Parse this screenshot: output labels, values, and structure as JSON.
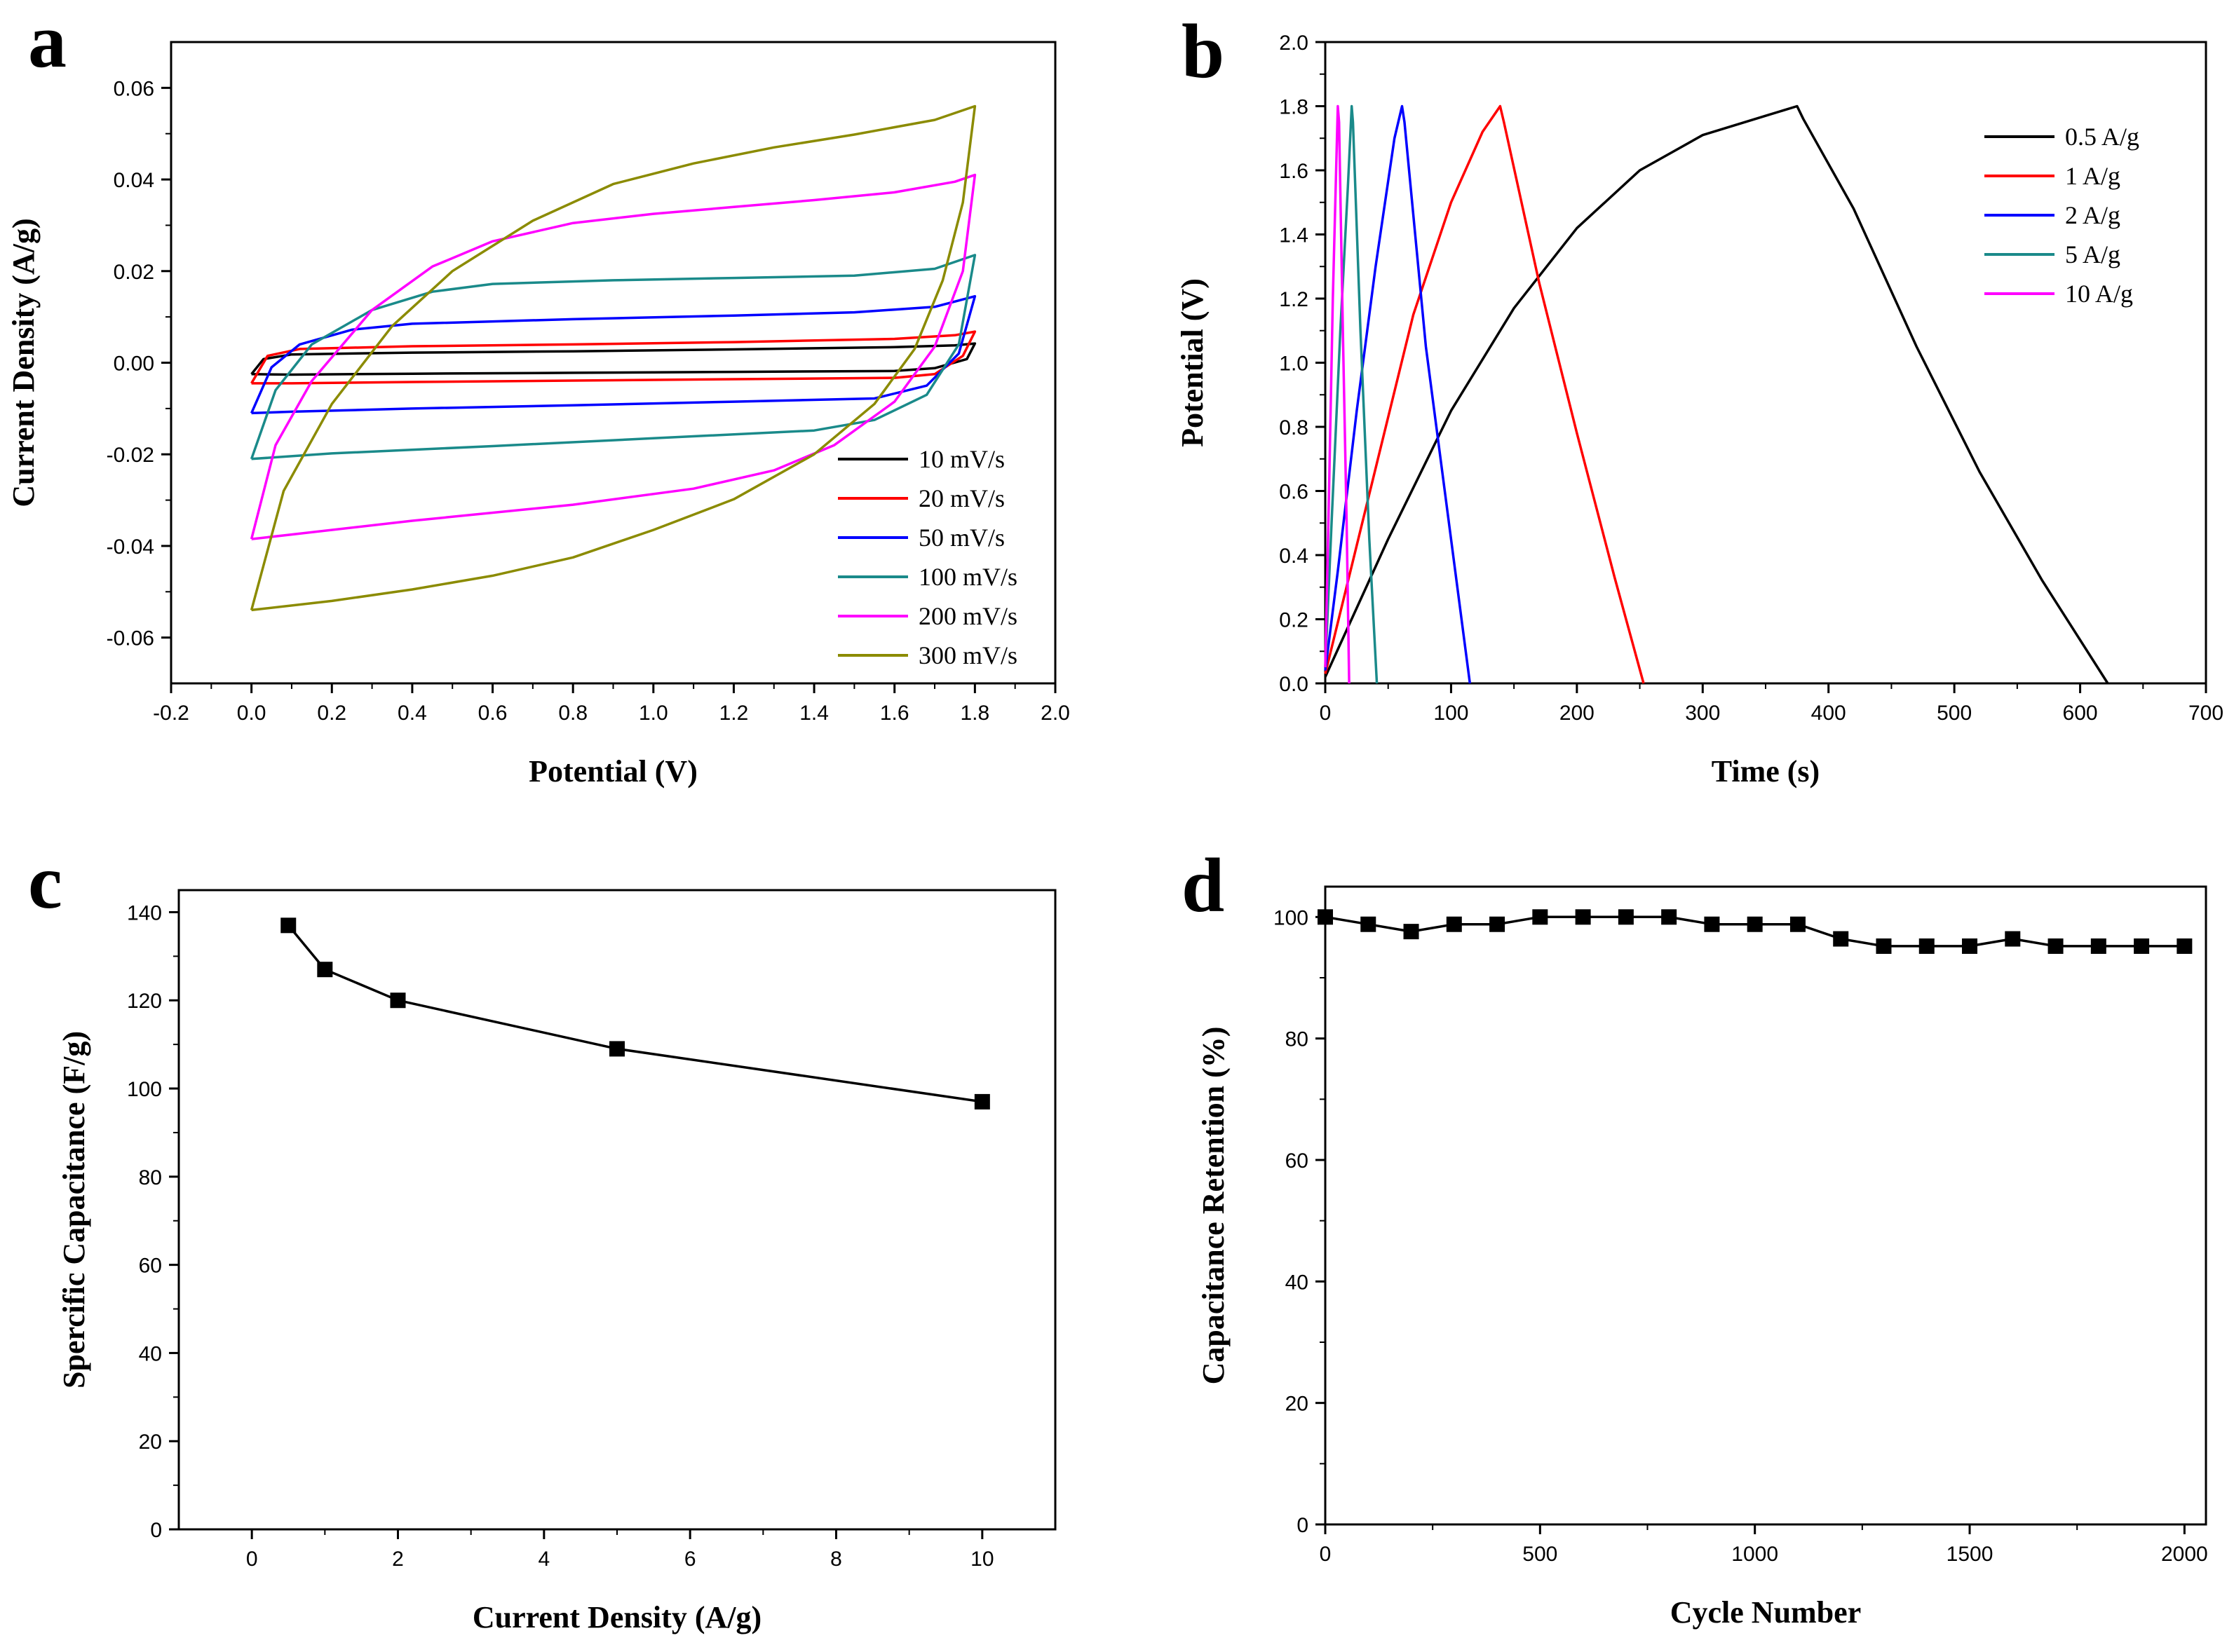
{
  "chart_data": [
    {
      "id": "a",
      "panel_label": "a",
      "type": "line",
      "title": "",
      "xlabel": "Potential (V)",
      "ylabel": "Current Density (A/g)",
      "xlim": [
        -0.2,
        2.0
      ],
      "ylim": [
        -0.07,
        0.07
      ],
      "xticks": [
        -0.2,
        0.0,
        0.2,
        0.4,
        0.6,
        0.8,
        1.0,
        1.2,
        1.4,
        1.6,
        1.8,
        2.0
      ],
      "xtick_labels": [
        "-0.2",
        "0.0",
        "0.2",
        "0.4",
        "0.6",
        "0.8",
        "1.0",
        "1.2",
        "1.4",
        "1.6",
        "1.8",
        "2.0"
      ],
      "yticks": [
        -0.06,
        -0.04,
        -0.02,
        0.0,
        0.02,
        0.04,
        0.06
      ],
      "ytick_labels": [
        "-0.06",
        "-0.04",
        "-0.02",
        "0.00",
        "0.02",
        "0.04",
        "0.06"
      ],
      "legend_position": "bottom-right",
      "series": [
        {
          "name": "10 mV/s",
          "color": "#000000",
          "points": [
            [
              0,
              -0.0025
            ],
            [
              0.03,
              0.0008
            ],
            [
              0.1,
              0.0018
            ],
            [
              0.4,
              0.0022
            ],
            [
              0.8,
              0.0025
            ],
            [
              1.2,
              0.0029
            ],
            [
              1.6,
              0.0034
            ],
            [
              1.75,
              0.0038
            ],
            [
              1.8,
              0.0042
            ],
            [
              1.78,
              0.0008
            ],
            [
              1.7,
              -0.0012
            ],
            [
              1.6,
              -0.0018
            ],
            [
              1.2,
              -0.002
            ],
            [
              0.8,
              -0.0022
            ],
            [
              0.4,
              -0.0024
            ],
            [
              0.1,
              -0.0026
            ],
            [
              0,
              -0.0025
            ]
          ]
        },
        {
          "name": "20 mV/s",
          "color": "#ff0000",
          "points": [
            [
              0,
              -0.0045
            ],
            [
              0.04,
              0.0015
            ],
            [
              0.12,
              0.003
            ],
            [
              0.4,
              0.0036
            ],
            [
              0.8,
              0.004
            ],
            [
              1.2,
              0.0045
            ],
            [
              1.6,
              0.0052
            ],
            [
              1.75,
              0.006
            ],
            [
              1.8,
              0.0068
            ],
            [
              1.77,
              0.0015
            ],
            [
              1.7,
              -0.0025
            ],
            [
              1.6,
              -0.0033
            ],
            [
              1.2,
              -0.0036
            ],
            [
              0.8,
              -0.0039
            ],
            [
              0.4,
              -0.0042
            ],
            [
              0.1,
              -0.0045
            ],
            [
              0,
              -0.0045
            ]
          ]
        },
        {
          "name": "50 mV/s",
          "color": "#0000ff",
          "points": [
            [
              0,
              -0.011
            ],
            [
              0.05,
              -0.001
            ],
            [
              0.12,
              0.004
            ],
            [
              0.25,
              0.0072
            ],
            [
              0.4,
              0.0085
            ],
            [
              0.8,
              0.0095
            ],
            [
              1.2,
              0.0103
            ],
            [
              1.5,
              0.011
            ],
            [
              1.7,
              0.0122
            ],
            [
              1.8,
              0.0145
            ],
            [
              1.76,
              0.002
            ],
            [
              1.68,
              -0.005
            ],
            [
              1.55,
              -0.0078
            ],
            [
              1.2,
              -0.0085
            ],
            [
              0.8,
              -0.0093
            ],
            [
              0.4,
              -0.01
            ],
            [
              0.1,
              -0.0107
            ],
            [
              0,
              -0.011
            ]
          ]
        },
        {
          "name": "100 mV/s",
          "color": "#1a8a8a",
          "points": [
            [
              0,
              -0.021
            ],
            [
              0.06,
              -0.006
            ],
            [
              0.15,
              0.004
            ],
            [
              0.3,
              0.0115
            ],
            [
              0.45,
              0.0155
            ],
            [
              0.6,
              0.0172
            ],
            [
              0.9,
              0.018
            ],
            [
              1.2,
              0.0185
            ],
            [
              1.5,
              0.019
            ],
            [
              1.7,
              0.0205
            ],
            [
              1.8,
              0.0235
            ],
            [
              1.76,
              0.004
            ],
            [
              1.68,
              -0.007
            ],
            [
              1.55,
              -0.0125
            ],
            [
              1.4,
              -0.0148
            ],
            [
              1.0,
              -0.0165
            ],
            [
              0.6,
              -0.0182
            ],
            [
              0.2,
              -0.0198
            ],
            [
              0,
              -0.021
            ]
          ]
        },
        {
          "name": "200 mV/s",
          "color": "#ff00ff",
          "points": [
            [
              0,
              -0.0385
            ],
            [
              0.06,
              -0.018
            ],
            [
              0.15,
              -0.004
            ],
            [
              0.3,
              0.0115
            ],
            [
              0.45,
              0.021
            ],
            [
              0.6,
              0.0265
            ],
            [
              0.8,
              0.0305
            ],
            [
              1.0,
              0.0325
            ],
            [
              1.2,
              0.034
            ],
            [
              1.4,
              0.0355
            ],
            [
              1.6,
              0.0372
            ],
            [
              1.75,
              0.0395
            ],
            [
              1.8,
              0.041
            ],
            [
              1.77,
              0.02
            ],
            [
              1.7,
              0.0035
            ],
            [
              1.6,
              -0.0085
            ],
            [
              1.45,
              -0.018
            ],
            [
              1.3,
              -0.0235
            ],
            [
              1.1,
              -0.0275
            ],
            [
              0.8,
              -0.031
            ],
            [
              0.4,
              -0.0345
            ],
            [
              0.1,
              -0.0375
            ],
            [
              0,
              -0.0385
            ]
          ]
        },
        {
          "name": "300 mV/s",
          "color": "#8b8b00",
          "points": [
            [
              0,
              -0.054
            ],
            [
              0.08,
              -0.028
            ],
            [
              0.2,
              -0.009
            ],
            [
              0.35,
              0.008
            ],
            [
              0.5,
              0.02
            ],
            [
              0.7,
              0.031
            ],
            [
              0.9,
              0.039
            ],
            [
              1.1,
              0.0435
            ],
            [
              1.3,
              0.047
            ],
            [
              1.5,
              0.0498
            ],
            [
              1.7,
              0.053
            ],
            [
              1.8,
              0.056
            ],
            [
              1.77,
              0.035
            ],
            [
              1.72,
              0.018
            ],
            [
              1.65,
              0.003
            ],
            [
              1.55,
              -0.009
            ],
            [
              1.4,
              -0.02
            ],
            [
              1.2,
              -0.0298
            ],
            [
              1.0,
              -0.0365
            ],
            [
              0.8,
              -0.0425
            ],
            [
              0.6,
              -0.0465
            ],
            [
              0.4,
              -0.0495
            ],
            [
              0.2,
              -0.052
            ],
            [
              0,
              -0.054
            ]
          ]
        }
      ]
    },
    {
      "id": "b",
      "panel_label": "b",
      "type": "line",
      "title": "",
      "xlabel": "Time (s)",
      "ylabel": "Potential (V)",
      "xlim": [
        0,
        700
      ],
      "ylim": [
        0,
        2.0
      ],
      "xticks": [
        0,
        100,
        200,
        300,
        400,
        500,
        600,
        700
      ],
      "xtick_labels": [
        "0",
        "100",
        "200",
        "300",
        "400",
        "500",
        "600",
        "700"
      ],
      "yticks": [
        0,
        0.2,
        0.4,
        0.6,
        0.8,
        1.0,
        1.2,
        1.4,
        1.6,
        1.8,
        2.0
      ],
      "ytick_labels": [
        "0.0",
        "0.2",
        "0.4",
        "0.6",
        "0.8",
        "1.0",
        "1.2",
        "1.4",
        "1.6",
        "1.8",
        "2.0"
      ],
      "legend_position": "top-right",
      "series": [
        {
          "name": "0.5 A/g",
          "color": "#000000",
          "points": [
            [
              0,
              0.02
            ],
            [
              50,
              0.45
            ],
            [
              100,
              0.85
            ],
            [
              150,
              1.17
            ],
            [
              200,
              1.42
            ],
            [
              250,
              1.6
            ],
            [
              300,
              1.71
            ],
            [
              350,
              1.77
            ],
            [
              375,
              1.8
            ],
            [
              380,
              1.76
            ],
            [
              420,
              1.48
            ],
            [
              470,
              1.05
            ],
            [
              520,
              0.66
            ],
            [
              570,
              0.32
            ],
            [
              622,
              0.0
            ]
          ]
        },
        {
          "name": "1 A/g",
          "color": "#ff0000",
          "points": [
            [
              0,
              0.03
            ],
            [
              20,
              0.35
            ],
            [
              45,
              0.75
            ],
            [
              70,
              1.15
            ],
            [
              100,
              1.5
            ],
            [
              125,
              1.72
            ],
            [
              139,
              1.8
            ],
            [
              142,
              1.75
            ],
            [
              170,
              1.25
            ],
            [
              200,
              0.78
            ],
            [
              230,
              0.33
            ],
            [
              253,
              0.0
            ]
          ]
        },
        {
          "name": "2 A/g",
          "color": "#0000ff",
          "points": [
            [
              0,
              0.04
            ],
            [
              10,
              0.35
            ],
            [
              25,
              0.85
            ],
            [
              40,
              1.3
            ],
            [
              55,
              1.7
            ],
            [
              61,
              1.8
            ],
            [
              63,
              1.75
            ],
            [
              80,
              1.05
            ],
            [
              100,
              0.45
            ],
            [
              115,
              0.0
            ]
          ]
        },
        {
          "name": "5 A/g",
          "color": "#1a8a8a",
          "points": [
            [
              0,
              0.05
            ],
            [
              5,
              0.5
            ],
            [
              12,
              1.1
            ],
            [
              18,
              1.55
            ],
            [
              21,
              1.8
            ],
            [
              22,
              1.75
            ],
            [
              28,
              1.1
            ],
            [
              35,
              0.45
            ],
            [
              41,
              0.0
            ]
          ]
        },
        {
          "name": "10 A/g",
          "color": "#ff00ff",
          "points": [
            [
              0,
              0.05
            ],
            [
              3,
              0.6
            ],
            [
              6,
              1.2
            ],
            [
              9,
              1.65
            ],
            [
              10,
              1.8
            ],
            [
              11,
              1.75
            ],
            [
              14,
              1.1
            ],
            [
              17,
              0.5
            ],
            [
              19,
              0.0
            ]
          ]
        }
      ]
    },
    {
      "id": "c",
      "panel_label": "c",
      "type": "line",
      "title": "",
      "xlabel": "Current Density (A/g)",
      "ylabel": "Spercific Capacitance (F/g)",
      "xlim": [
        -1,
        11
      ],
      "ylim": [
        0,
        145
      ],
      "xticks": [
        0,
        2,
        4,
        6,
        8,
        10
      ],
      "xtick_labels": [
        "0",
        "2",
        "4",
        "6",
        "8",
        "10"
      ],
      "yticks": [
        0,
        20,
        40,
        60,
        80,
        100,
        120,
        140
      ],
      "ytick_labels": [
        "0",
        "20",
        "40",
        "60",
        "80",
        "100",
        "120",
        "140"
      ],
      "series": [
        {
          "name": "Specific Capacitance",
          "color": "#000000",
          "marker": "square",
          "x": [
            0.5,
            1,
            2,
            5,
            10
          ],
          "y": [
            137,
            127,
            120,
            109,
            97
          ]
        }
      ]
    },
    {
      "id": "d",
      "panel_label": "d",
      "type": "line",
      "title": "",
      "xlabel": "Cycle Number",
      "ylabel": "Capacitance Retention (%)",
      "xlim": [
        0,
        2050
      ],
      "ylim": [
        0,
        105
      ],
      "xticks": [
        0,
        500,
        1000,
        1500,
        2000
      ],
      "xtick_labels": [
        "0",
        "500",
        "1000",
        "1500",
        "2000"
      ],
      "yticks": [
        0,
        20,
        40,
        60,
        80,
        100
      ],
      "ytick_labels": [
        "0",
        "20",
        "40",
        "60",
        "80",
        "100"
      ],
      "series": [
        {
          "name": "Capacitance Retention",
          "color": "#000000",
          "marker": "square",
          "x": [
            0,
            100,
            200,
            300,
            400,
            500,
            600,
            700,
            800,
            900,
            1000,
            1100,
            1200,
            1300,
            1400,
            1500,
            1600,
            1700,
            1800,
            1900,
            2000
          ],
          "y": [
            100,
            98.8,
            97.6,
            98.8,
            98.8,
            100,
            100,
            100,
            100,
            98.8,
            98.8,
            98.8,
            96.4,
            95.2,
            95.2,
            95.2,
            96.4,
            95.2,
            95.2,
            95.2,
            95.2
          ]
        }
      ]
    }
  ]
}
